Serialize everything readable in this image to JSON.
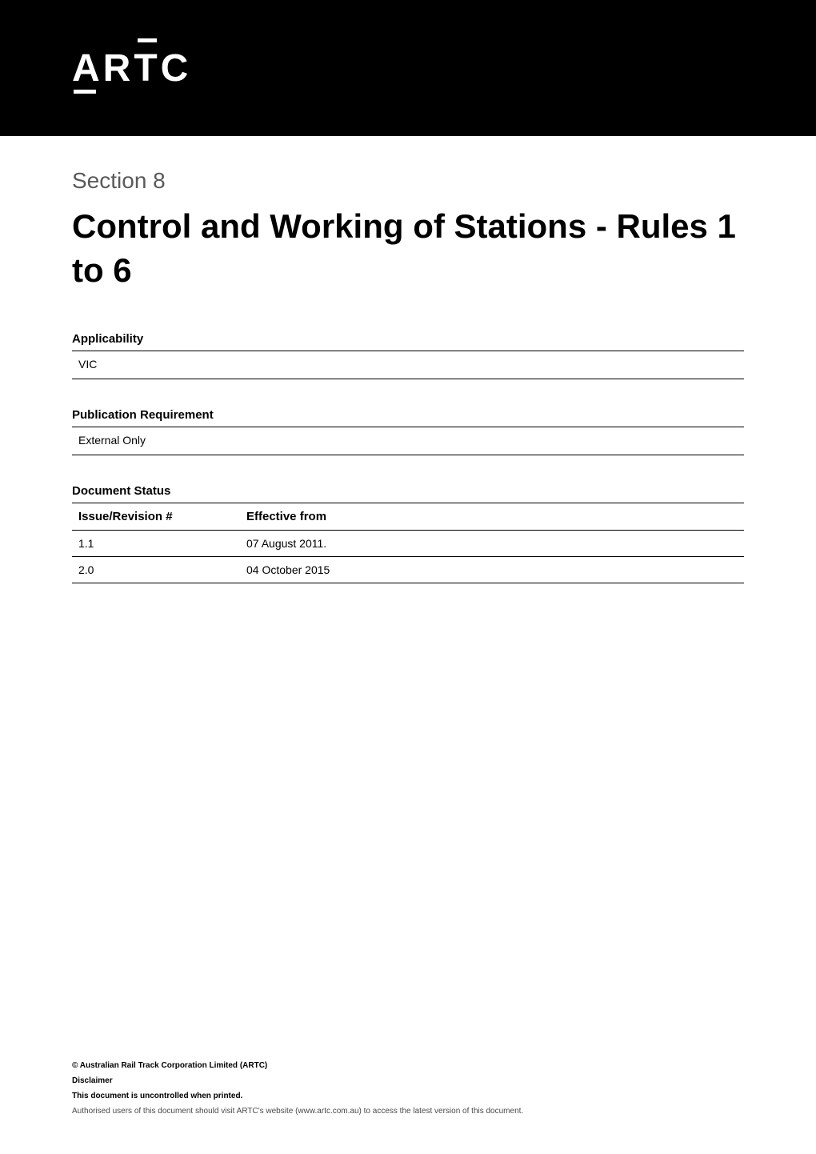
{
  "logo": {
    "text": "ARTC",
    "semantic_name": "artc-logo"
  },
  "section_label": "Section 8",
  "main_title": "Control and Working of Stations - Rules 1 to 6",
  "applicability": {
    "label": "Applicability",
    "value": "VIC"
  },
  "publication_requirement": {
    "label": "Publication Requirement",
    "value": "External Only"
  },
  "document_status": {
    "label": "Document Status",
    "columns": [
      "Issue/Revision #",
      "Effective from"
    ],
    "rows": [
      [
        "1.1",
        "07 August 2011."
      ],
      [
        "2.0",
        "04 October 2015"
      ]
    ]
  },
  "footer": {
    "copyright": "© Australian Rail Track Corporation Limited (ARTC)",
    "disclaimer_label": "Disclaimer",
    "uncontrolled_notice": "This document is uncontrolled when printed.",
    "authorised_notice": "Authorised users of this document should visit ARTC's website (www.artc.com.au) to access the latest version of this document."
  },
  "styling": {
    "background_color": "#ffffff",
    "banner_background_color": "#000000",
    "logo_color": "#ffffff",
    "section_label_color": "#5a5a5a",
    "title_color": "#000000",
    "text_color": "#000000",
    "footer_secondary_color": "#4a4a4a",
    "border_color": "#000000",
    "logo_fontsize": 48,
    "section_label_fontsize": 28,
    "title_fontsize": 42,
    "label_fontsize": 15,
    "body_fontsize": 14,
    "footer_fontsize": 10
  }
}
